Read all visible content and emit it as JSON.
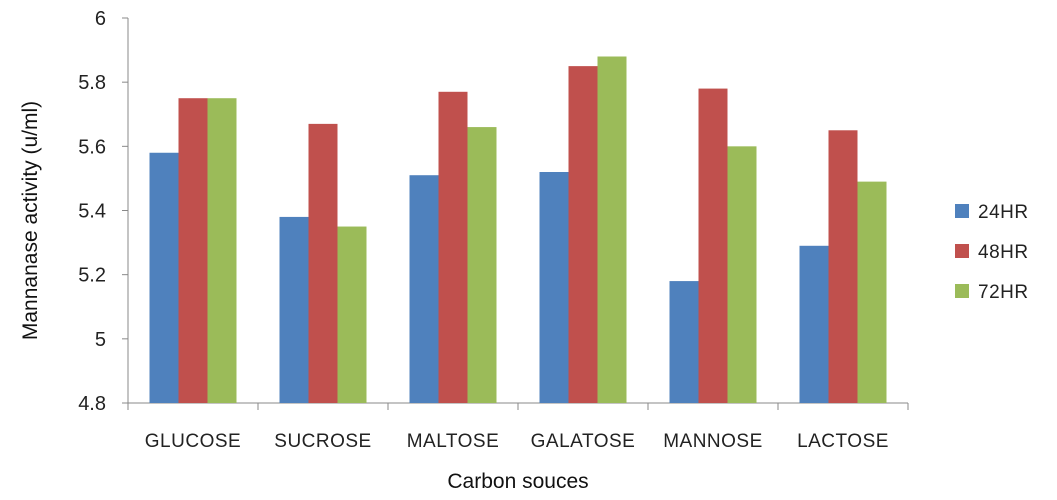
{
  "chart_data": {
    "type": "bar",
    "title": "",
    "xlabel": "Carbon souces",
    "ylabel": "Mannanase activity (u/ml)",
    "ylim": [
      4.8,
      6.0
    ],
    "yticks": [
      "4.8",
      "5",
      "5.2",
      "5.4",
      "5.6",
      "5.8",
      "6"
    ],
    "categories": [
      "GLUCOSE",
      "SUCROSE",
      "MALTOSE",
      "GALATOSE",
      "MANNOSE",
      "LACTOSE"
    ],
    "series": [
      {
        "name": "24HR",
        "color": "#4f81bd",
        "values": [
          5.58,
          5.38,
          5.51,
          5.52,
          5.18,
          5.29
        ]
      },
      {
        "name": "48HR",
        "color": "#c0504d",
        "values": [
          5.75,
          5.67,
          5.77,
          5.85,
          5.78,
          5.65
        ]
      },
      {
        "name": "72HR",
        "color": "#9bbb59",
        "values": [
          5.75,
          5.35,
          5.66,
          5.88,
          5.6,
          5.49
        ]
      }
    ],
    "grid": false,
    "legend_position": "right"
  }
}
